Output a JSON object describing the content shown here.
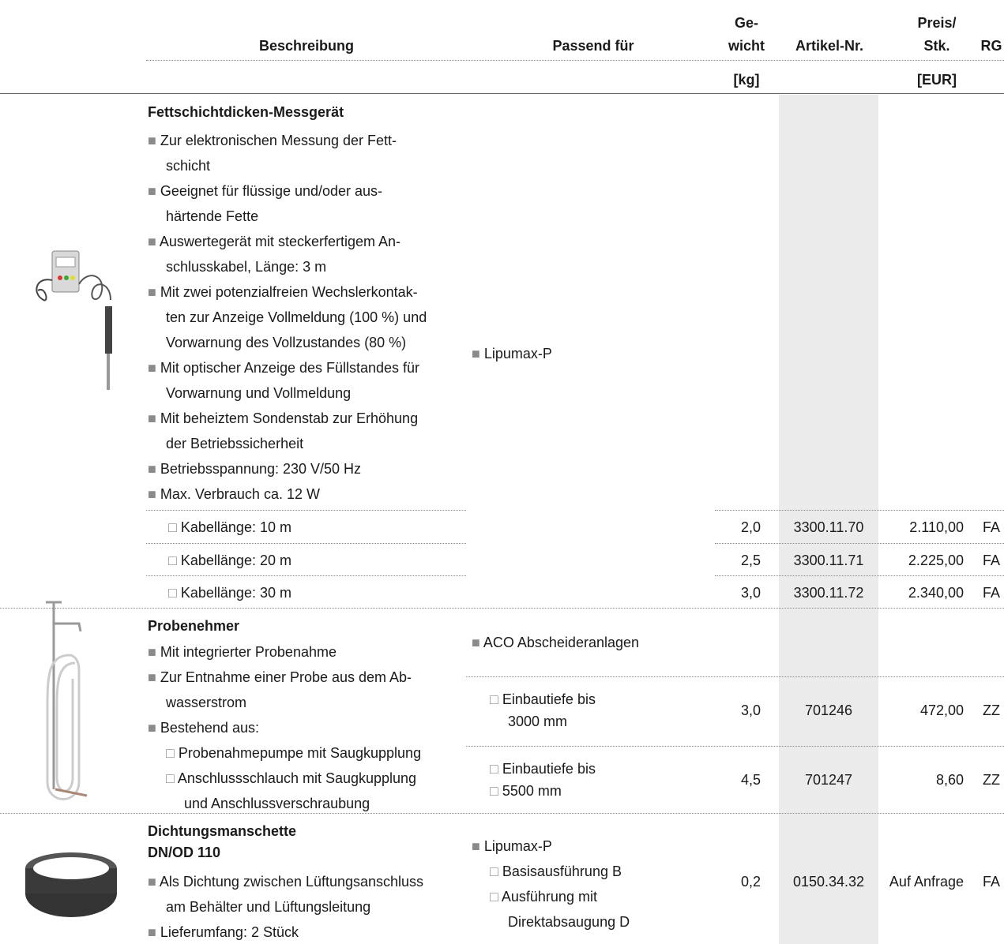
{
  "header": {
    "beschreibung": "Beschreibung",
    "passend": "Passend für",
    "gewicht": [
      "Ge-",
      "wicht"
    ],
    "gewicht_unit": "[kg]",
    "artikel": "Artikel-Nr.",
    "preis": [
      "Preis/",
      "Stk."
    ],
    "preis_unit": "[EUR]",
    "rg": "RG"
  },
  "products": [
    {
      "title": [
        "Fettschichtdicken-Messgerät"
      ],
      "bullets": [
        {
          "lines": [
            "■ Zur elektronischen Messung der Fett-",
            "schicht"
          ]
        },
        {
          "lines": [
            "■ Geeignet für flüssige und/oder aus-",
            "härtende Fette"
          ]
        },
        {
          "lines": [
            "■ Auswertegerät mit steckerfertigem An-",
            "schlusskabel, Länge: 3 m"
          ]
        },
        {
          "lines": [
            "■ Mit zwei potenzialfreien Wechslerkontak-",
            "ten zur Anzeige Vollmeldung (100 %) und",
            "Vorwarnung des Vollzustandes (80 %)"
          ]
        },
        {
          "lines": [
            "■ Mit optischer Anzeige des Füllstandes für",
            "Vorwarnung und Vollmeldung"
          ]
        },
        {
          "lines": [
            "■ Mit beheiztem Sondenstab zur Erhöhung",
            "der Betriebssicherheit"
          ]
        },
        {
          "lines": [
            "■ Betriebsspannung: 230 V/50 Hz"
          ]
        },
        {
          "lines": [
            "■ Max. Verbrauch ca. 12 W"
          ]
        }
      ],
      "passend": [
        {
          "lines": [
            "■ Lipumax-P"
          ]
        }
      ],
      "variants": [
        {
          "label": [
            "□ Kabellänge: 10 m"
          ],
          "gewicht": "2,0",
          "artikel": "3300.11.70",
          "preis": "2.110,00",
          "rg": "FA"
        },
        {
          "label": [
            "□ Kabellänge: 20 m"
          ],
          "gewicht": "2,5",
          "artikel": "3300.11.71",
          "preis": "2.225,00",
          "rg": "FA"
        },
        {
          "label": [
            "□ Kabellänge: 30 m"
          ],
          "gewicht": "3,0",
          "artikel": "3300.11.72",
          "preis": "2.340,00",
          "rg": "FA"
        }
      ]
    },
    {
      "title": [
        "Probenehmer"
      ],
      "bullets": [
        {
          "lines": [
            "■ Mit integrierter Probenahme"
          ]
        },
        {
          "lines": [
            "■ Zur Entnahme einer Probe aus dem Ab-",
            "wasserstrom"
          ]
        },
        {
          "lines": [
            "■ Bestehend aus:"
          ],
          "items": [
            {
              "lines": [
                "□ Probenahmepumpe mit Saugkupplung"
              ]
            },
            {
              "lines": [
                "□ Anschlussschlauch mit Saugkupplung",
                "und Anschlussverschraubung"
              ]
            }
          ]
        }
      ],
      "passend": [
        {
          "lines": [
            "■ ACO Abscheideranlagen"
          ]
        }
      ],
      "variants": [
        {
          "label": [
            "□ Einbautiefe bis",
            "3000 mm"
          ],
          "gewicht": "3,0",
          "artikel": "701246",
          "preis": "472,00",
          "rg": "ZZ"
        },
        {
          "label": [
            "□ Einbautiefe bis",
            "□ 5500 mm"
          ],
          "gewicht": "4,5",
          "artikel": "701247",
          "preis": "8,60",
          "rg": "ZZ"
        }
      ]
    },
    {
      "title": [
        "Dichtungsmanschette",
        "DN/OD 110"
      ],
      "bullets": [
        {
          "lines": [
            "■ Als Dichtung zwischen Lüftungsanschluss",
            "am Behälter und Lüftungsleitung"
          ]
        },
        {
          "lines": [
            "■ Lieferumfang: 2 Stück"
          ]
        }
      ],
      "passend": [
        {
          "lines": [
            "■ Lipumax-P"
          ],
          "items": [
            {
              "lines": [
                "□ Basisausführung B"
              ]
            },
            {
              "lines": [
                "□ Ausführung mit",
                "Direktabsaugung D"
              ]
            }
          ]
        }
      ],
      "variants": [
        {
          "gewicht": "0,2",
          "artikel": "0150.34.32",
          "preis": "Auf Anfrage",
          "rg": "FA"
        }
      ]
    }
  ]
}
